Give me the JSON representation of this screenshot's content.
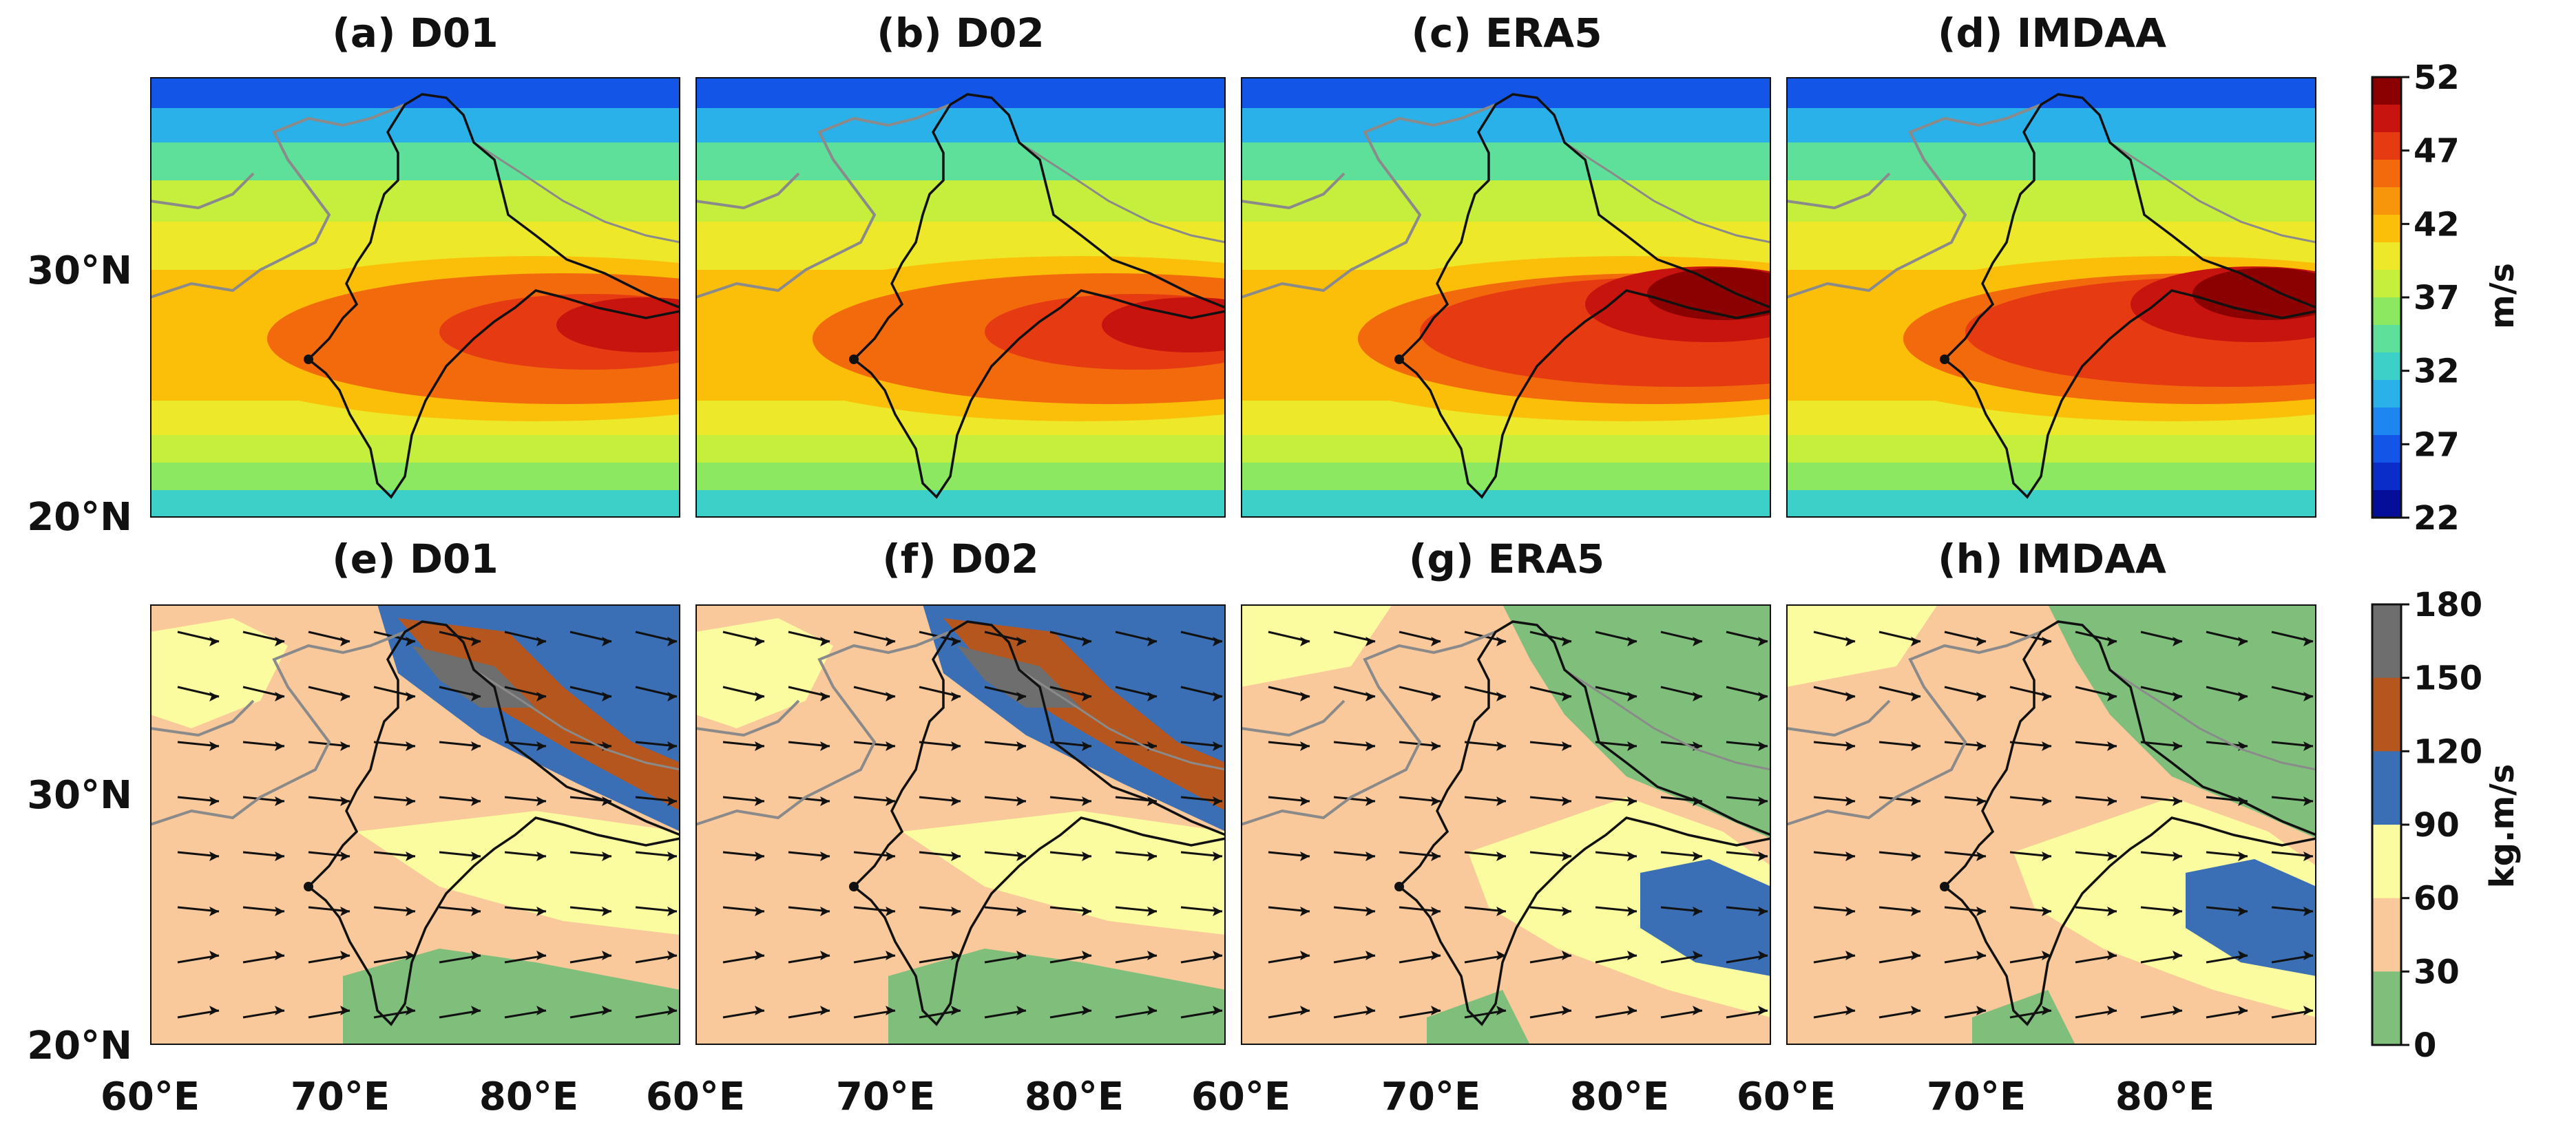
{
  "figure": {
    "top_panels": [
      {
        "title": "(a) D01",
        "core": "orange-red",
        "core_strength": 2
      },
      {
        "title": "(b) D02",
        "core": "orange-red",
        "core_strength": 2
      },
      {
        "title": "(c) ERA5",
        "core": "dark-red",
        "core_strength": 3
      },
      {
        "title": "(d) IMDAA",
        "core": "dark-red",
        "core_strength": 3
      }
    ],
    "bottom_panels": [
      {
        "title": "(e) D01",
        "style": "noisy-high-terrain"
      },
      {
        "title": "(f) D02",
        "style": "noisy-high-terrain"
      },
      {
        "title": "(g) ERA5",
        "style": "smooth-blue-core"
      },
      {
        "title": "(h) IMDAA",
        "style": "smooth-blue-core"
      }
    ],
    "top_y_ticks": [
      "30°N",
      "20°N"
    ],
    "bottom_y_ticks": [
      "30°N",
      "20°N"
    ],
    "x_ticks": [
      "60°E",
      "70°E",
      "80°E"
    ],
    "wind_colorbar": {
      "unit": "m/s",
      "ticks": [
        "52",
        "47",
        "42",
        "37",
        "32",
        "27",
        "22"
      ],
      "colors": [
        "#8b0000",
        "#c8140e",
        "#e53a12",
        "#f26a0c",
        "#f7960b",
        "#fbbf09",
        "#ede92a",
        "#c6ee3d",
        "#8ce860",
        "#5fe09a",
        "#3dd0c9",
        "#2ab1ea",
        "#1e86f0",
        "#1355e6",
        "#0a2cc8",
        "#050e98"
      ]
    },
    "flux_colorbar": {
      "unit": "kg.m/s",
      "ticks": [
        "180",
        "150",
        "120",
        "90",
        "60",
        "30",
        "0"
      ],
      "colors": [
        "#6e6e6e",
        "#b5561e",
        "#3a6eb5",
        "#fbfba0",
        "#f9c89b",
        "#7fbf7b"
      ]
    }
  }
}
